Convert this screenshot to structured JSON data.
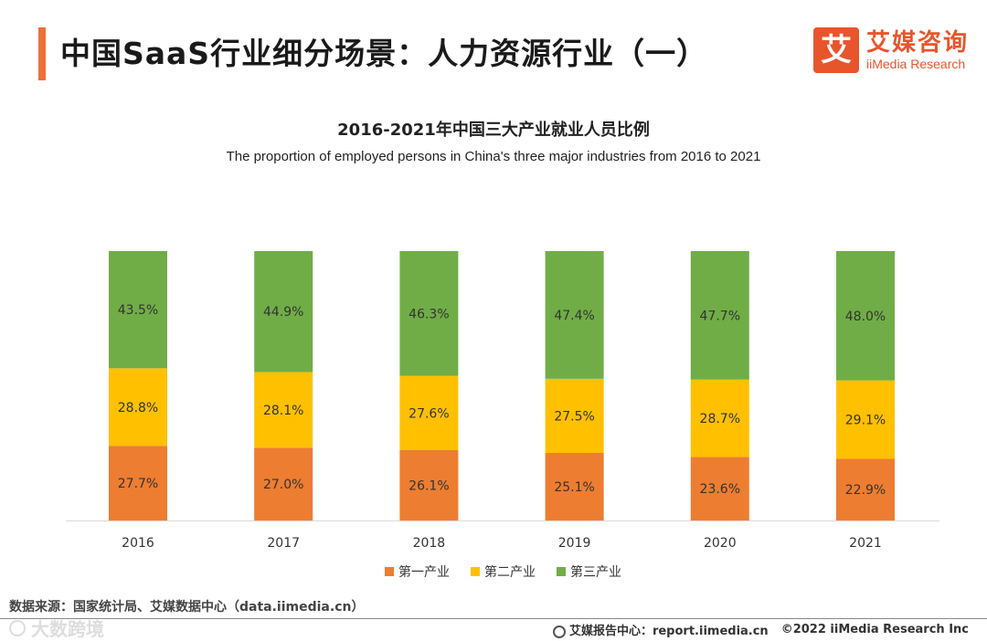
{
  "header": {
    "title": "中国SaaS行业细分场景：人力资源行业（一）",
    "brand_mark": "艾",
    "brand_name": "艾媒咨询",
    "brand_en": "iiMedia Research"
  },
  "chart_data": {
    "type": "bar",
    "stacked": true,
    "title": "2016-2021年中国三大产业就业人员比例",
    "subtitle": "The proportion of employed persons in China's three major industries from 2016 to 2021",
    "categories": [
      "2016",
      "2017",
      "2018",
      "2019",
      "2020",
      "2021"
    ],
    "series": [
      {
        "name": "第一产业",
        "color": "#ed7d31",
        "values": [
          27.7,
          27.0,
          26.1,
          25.1,
          23.6,
          22.9
        ],
        "labels": [
          "27.7%",
          "27.0%",
          "26.1%",
          "25.1%",
          "23.6%",
          "22.9%"
        ]
      },
      {
        "name": "第二产业",
        "color": "#ffc000",
        "values": [
          28.8,
          28.1,
          27.6,
          27.5,
          28.7,
          29.1
        ],
        "labels": [
          "28.8%",
          "28.1%",
          "27.6%",
          "27.5%",
          "28.7%",
          "29.1%"
        ]
      },
      {
        "name": "第三产业",
        "color": "#70ad47",
        "values": [
          43.5,
          44.9,
          46.3,
          47.4,
          47.7,
          48.0
        ],
        "labels": [
          "43.5%",
          "44.9%",
          "46.3%",
          "47.4%",
          "47.7%",
          "48.0%"
        ]
      }
    ],
    "ylim": [
      0,
      100
    ],
    "legend_position": "bottom",
    "grid": false
  },
  "source": "数据来源：国家统计局、艾媒数据中心（data.iimedia.cn）",
  "footer": {
    "report_center": "艾媒报告中心：report.iimedia.cn",
    "copyright": "©2022 iiMedia Research Inc"
  },
  "watermark": "大数跨境"
}
